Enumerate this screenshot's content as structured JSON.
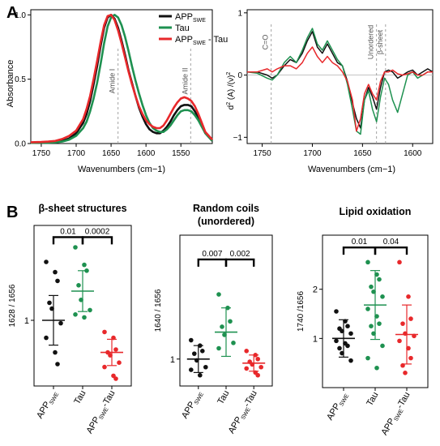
{
  "colors": {
    "black": "#111111",
    "green": "#1e9150",
    "red": "#e8282b",
    "dash": "#999999"
  },
  "panel_labels": {
    "a": "A",
    "b": "B"
  },
  "chart_data": [
    {
      "id": "absorbance",
      "type": "line",
      "xlabel": "Wavenumbers (cm−1)",
      "ylabel": "Absorbance",
      "xlim": [
        1765,
        1505
      ],
      "ylim": [
        0,
        1.04
      ],
      "xticks": [
        1750,
        1700,
        1650,
        1600,
        1550
      ],
      "yticks": [
        0.0,
        0.5,
        1.0
      ],
      "ytick_labels": [
        "0.0",
        "0.5",
        "1.0"
      ],
      "legend_position": "top-right",
      "annotations": [
        {
          "text": "Amide I",
          "x": 1640
        },
        {
          "text": "Amide II",
          "x": 1536
        }
      ],
      "series": [
        {
          "name": "APP",
          "sub": "SWE",
          "suffix": "",
          "color": "black",
          "x": [
            1765,
            1750,
            1740,
            1730,
            1720,
            1710,
            1700,
            1690,
            1685,
            1680,
            1675,
            1670,
            1665,
            1660,
            1655,
            1650,
            1645,
            1640,
            1635,
            1630,
            1625,
            1620,
            1615,
            1610,
            1605,
            1600,
            1595,
            1590,
            1585,
            1580,
            1575,
            1570,
            1565,
            1560,
            1555,
            1550,
            1545,
            1540,
            1535,
            1530,
            1525,
            1520,
            1515,
            1505
          ],
          "y": [
            0.005,
            0.006,
            0.007,
            0.01,
            0.02,
            0.04,
            0.08,
            0.16,
            0.23,
            0.33,
            0.46,
            0.6,
            0.76,
            0.9,
            0.98,
            1.0,
            0.97,
            0.9,
            0.8,
            0.69,
            0.57,
            0.47,
            0.37,
            0.28,
            0.21,
            0.15,
            0.11,
            0.09,
            0.08,
            0.08,
            0.1,
            0.13,
            0.17,
            0.22,
            0.26,
            0.29,
            0.3,
            0.3,
            0.29,
            0.25,
            0.2,
            0.14,
            0.08,
            0.02
          ]
        },
        {
          "name": "Tau",
          "sub": "",
          "suffix": "",
          "color": "green",
          "x": [
            1765,
            1750,
            1740,
            1730,
            1720,
            1710,
            1700,
            1690,
            1685,
            1680,
            1675,
            1670,
            1665,
            1660,
            1655,
            1650,
            1645,
            1640,
            1635,
            1630,
            1625,
            1620,
            1615,
            1610,
            1605,
            1600,
            1595,
            1590,
            1585,
            1580,
            1575,
            1570,
            1565,
            1560,
            1555,
            1550,
            1545,
            1540,
            1535,
            1530,
            1525,
            1520,
            1515,
            1505
          ],
          "y": [
            0.005,
            0.006,
            0.007,
            0.009,
            0.015,
            0.03,
            0.06,
            0.12,
            0.17,
            0.25,
            0.35,
            0.47,
            0.62,
            0.78,
            0.91,
            0.98,
            1.0,
            0.98,
            0.92,
            0.83,
            0.72,
            0.6,
            0.49,
            0.39,
            0.3,
            0.22,
            0.16,
            0.12,
            0.1,
            0.09,
            0.09,
            0.11,
            0.14,
            0.18,
            0.22,
            0.25,
            0.26,
            0.26,
            0.25,
            0.22,
            0.18,
            0.13,
            0.08,
            0.02
          ]
        },
        {
          "name": "APP",
          "sub": "SWE",
          "suffix": " - Tau",
          "color": "red",
          "x": [
            1765,
            1750,
            1740,
            1730,
            1720,
            1710,
            1700,
            1690,
            1685,
            1680,
            1675,
            1670,
            1665,
            1660,
            1655,
            1650,
            1645,
            1640,
            1635,
            1630,
            1625,
            1620,
            1615,
            1610,
            1605,
            1600,
            1595,
            1590,
            1585,
            1580,
            1575,
            1570,
            1565,
            1560,
            1555,
            1550,
            1545,
            1540,
            1535,
            1530,
            1525,
            1520,
            1515,
            1505
          ],
          "y": [
            0.01,
            0.012,
            0.015,
            0.02,
            0.035,
            0.06,
            0.1,
            0.19,
            0.27,
            0.37,
            0.5,
            0.64,
            0.79,
            0.92,
            0.99,
            1.0,
            0.96,
            0.88,
            0.78,
            0.67,
            0.56,
            0.46,
            0.37,
            0.29,
            0.23,
            0.18,
            0.15,
            0.13,
            0.12,
            0.12,
            0.14,
            0.18,
            0.23,
            0.28,
            0.32,
            0.35,
            0.36,
            0.35,
            0.33,
            0.29,
            0.23,
            0.16,
            0.09,
            0.03
          ]
        }
      ]
    },
    {
      "id": "second-derivative",
      "type": "line",
      "xlabel": "Wavenumbers (cm−1)",
      "ylabel_main": "d",
      "ylabel_sup1": "2",
      "ylabel_mid": " (A) /(ν)",
      "ylabel_sup2": "2",
      "xlim": [
        1765,
        1580
      ],
      "ylim": [
        -1.1,
        1.05
      ],
      "xticks": [
        1750,
        1700,
        1650,
        1600
      ],
      "yticks": [
        -1,
        0,
        1
      ],
      "ytick_labels": [
        "−1",
        "0",
        "1"
      ],
      "annotations": [
        {
          "text": "C=O",
          "x": 1741
        },
        {
          "text": "Unordered",
          "x": 1636
        },
        {
          "text": "β-sheet",
          "x": 1627
        }
      ],
      "series": [
        {
          "name": "APP",
          "color": "black",
          "x": [
            1765,
            1755,
            1745,
            1740,
            1735,
            1728,
            1722,
            1716,
            1710,
            1705,
            1700,
            1695,
            1690,
            1685,
            1680,
            1675,
            1670,
            1665,
            1660,
            1656,
            1652,
            1648,
            1644,
            1640,
            1636,
            1632,
            1628,
            1624,
            1620,
            1615,
            1610,
            1605,
            1600,
            1595,
            1590,
            1585,
            1580
          ],
          "y": [
            0.05,
            0.05,
            0.0,
            -0.05,
            0.0,
            0.15,
            0.25,
            0.2,
            0.35,
            0.55,
            0.7,
            0.45,
            0.35,
            0.5,
            0.35,
            0.2,
            0.15,
            -0.1,
            -0.45,
            -0.7,
            -0.85,
            -0.4,
            -0.2,
            -0.35,
            -0.55,
            -0.2,
            0.05,
            0.08,
            0.05,
            -0.05,
            0.0,
            0.05,
            0.08,
            0.0,
            0.05,
            0.1,
            0.05
          ]
        },
        {
          "name": "Tau",
          "color": "green",
          "x": [
            1765,
            1755,
            1745,
            1740,
            1735,
            1728,
            1722,
            1716,
            1710,
            1705,
            1700,
            1695,
            1690,
            1685,
            1680,
            1675,
            1670,
            1665,
            1660,
            1656,
            1652,
            1648,
            1644,
            1640,
            1636,
            1632,
            1628,
            1624,
            1620,
            1615,
            1610,
            1605,
            1600,
            1595,
            1590,
            1585,
            1580
          ],
          "y": [
            0.05,
            0.03,
            -0.05,
            -0.08,
            0.0,
            0.2,
            0.3,
            0.2,
            0.4,
            0.6,
            0.75,
            0.5,
            0.4,
            0.55,
            0.4,
            0.25,
            0.15,
            -0.15,
            -0.55,
            -0.9,
            -0.95,
            -0.4,
            -0.25,
            -0.55,
            -0.75,
            -0.35,
            -0.05,
            -0.15,
            -0.4,
            -0.6,
            -0.3,
            0.0,
            0.05,
            -0.05,
            0.0,
            0.05,
            0.05
          ]
        },
        {
          "name": "APP-Tau",
          "color": "red",
          "x": [
            1765,
            1755,
            1745,
            1740,
            1735,
            1728,
            1722,
            1716,
            1710,
            1705,
            1700,
            1695,
            1690,
            1685,
            1680,
            1675,
            1670,
            1665,
            1660,
            1656,
            1652,
            1648,
            1644,
            1640,
            1636,
            1632,
            1628,
            1624,
            1620,
            1615,
            1610,
            1605,
            1600,
            1595,
            1590,
            1585,
            1580
          ],
          "y": [
            0.05,
            0.05,
            0.1,
            0.05,
            0.1,
            0.15,
            0.15,
            0.1,
            0.2,
            0.35,
            0.45,
            0.3,
            0.2,
            0.3,
            0.2,
            0.15,
            0.05,
            -0.1,
            -0.4,
            -0.9,
            -0.7,
            -0.3,
            -0.15,
            -0.3,
            -0.4,
            -0.1,
            0.05,
            0.05,
            0.08,
            0.02,
            0.0,
            0.02,
            0.05,
            0.0,
            0.0,
            0.05,
            0.05
          ]
        }
      ]
    },
    {
      "id": "beta-sheet",
      "type": "scatter",
      "title": "β-sheet structures",
      "title2": "",
      "ylabel": "1628 / 1656",
      "ylim": [
        0.55,
        1.65
      ],
      "yticks": [
        1
      ],
      "ytick_labels": [
        "1"
      ],
      "categories": [
        {
          "main": "APP",
          "sub": "SWE",
          "suffix": ""
        },
        {
          "main": "Tau",
          "sub": "",
          "suffix": ""
        },
        {
          "main": "APP",
          "sub": "SWE",
          "suffix": "-Tau"
        }
      ],
      "colors": [
        "black",
        "green",
        "red"
      ],
      "means": [
        1.0,
        1.2,
        0.78
      ],
      "sd": [
        0.17,
        0.14,
        0.09
      ],
      "points": [
        [
          1.4,
          1.33,
          1.27,
          1.12,
          1.08,
          0.98,
          0.88,
          0.78,
          0.7
        ],
        [
          1.5,
          1.38,
          1.34,
          1.24,
          1.14,
          1.07,
          1.04,
          1.02
        ],
        [
          0.92,
          0.88,
          0.8,
          0.78,
          0.76,
          0.71,
          0.68,
          0.62,
          0.6
        ]
      ],
      "brackets": [
        {
          "from": 0,
          "to": 1,
          "label": "0.01",
          "y": 1.57
        },
        {
          "from": 1,
          "to": 2,
          "label": "0.0002",
          "y": 1.57
        }
      ]
    },
    {
      "id": "random-coils",
      "type": "scatter",
      "title": "Random coils",
      "title2": "(unordered)",
      "ylabel": "1640 / 1656",
      "ylim": [
        0.8,
        1.92
      ],
      "yticks": [
        1
      ],
      "ytick_labels": [
        "1"
      ],
      "categories": [
        {
          "main": "APP",
          "sub": "SWE",
          "suffix": ""
        },
        {
          "main": "Tau",
          "sub": "",
          "suffix": ""
        },
        {
          "main": "APP",
          "sub": "SWE",
          "suffix": "-Tau"
        }
      ],
      "colors": [
        "black",
        "green",
        "red"
      ],
      "means": [
        1.0,
        1.2,
        0.97
      ],
      "sd": [
        0.1,
        0.18,
        0.06
      ],
      "points": [
        [
          1.14,
          1.1,
          1.06,
          1.04,
          0.99,
          0.94,
          0.92,
          0.88
        ],
        [
          1.48,
          1.38,
          1.28,
          1.24,
          1.18,
          1.12,
          1.08
        ],
        [
          1.06,
          1.03,
          1.0,
          0.98,
          0.96,
          0.94,
          0.93,
          0.9,
          0.88
        ]
      ],
      "brackets": [
        {
          "from": 0,
          "to": 1,
          "label": "0.007",
          "y": 1.74
        },
        {
          "from": 1,
          "to": 2,
          "label": "0.002",
          "y": 1.74
        }
      ]
    },
    {
      "id": "lipid-oxidation",
      "type": "scatter",
      "title": "Lipid oxidation",
      "title2": "",
      "ylabel": "1740 /1656",
      "ylim": [
        0,
        3.1
      ],
      "yticks": [
        1,
        2
      ],
      "ytick_labels": [
        "1",
        "2"
      ],
      "categories": [
        {
          "main": "APP",
          "sub": "SWE",
          "suffix": ""
        },
        {
          "main": "Tau",
          "sub": "",
          "suffix": ""
        },
        {
          "main": "APP",
          "sub": "SWE",
          "suffix": "-Tau"
        }
      ],
      "colors": [
        "black",
        "green",
        "red"
      ],
      "means": [
        1.0,
        1.68,
        1.08
      ],
      "sd": [
        0.38,
        0.7,
        0.6
      ],
      "points": [
        [
          1.55,
          1.35,
          1.25,
          1.2,
          1.15,
          1.1,
          0.95,
          0.9,
          0.85,
          0.8,
          0.7,
          0.55
        ],
        [
          2.55,
          2.3,
          2.2,
          2.05,
          1.95,
          1.85,
          1.6,
          1.45,
          1.3,
          1.25,
          1.1,
          0.85,
          0.6,
          0.4
        ],
        [
          2.55,
          1.85,
          1.4,
          1.3,
          1.1,
          1.05,
          0.95,
          0.8,
          0.6,
          0.45,
          0.3
        ]
      ],
      "brackets": [
        {
          "from": 0,
          "to": 1,
          "label": "0.01",
          "y": 2.85
        },
        {
          "from": 1,
          "to": 2,
          "label": "0.04",
          "y": 2.85
        }
      ]
    }
  ]
}
